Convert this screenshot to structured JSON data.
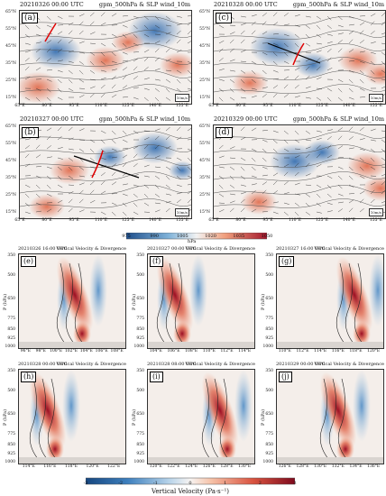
{
  "top_panels": [
    {
      "label": "(a)",
      "date": "20210326 00:00 UTC",
      "title": "gpm_500hPa & SLP wind_10m",
      "ref": "10m/s"
    },
    {
      "label": "(c)",
      "date": "20210328 00:00 UTC",
      "title": "gpm_500hPa & SLP wind_10m",
      "ref": "10m/s"
    },
    {
      "label": "(b)",
      "date": "20210327 00:00 UTC",
      "title": "gpm_500hPa & SLP wind_10m",
      "ref": "10m/s"
    },
    {
      "label": "(d)",
      "date": "20210329 00:00 UTC",
      "title": "gpm_500hPa & SLP wind_10m",
      "ref": "10m/s"
    }
  ],
  "top_lat_ticks": [
    "65°N",
    "55°N",
    "45°N",
    "35°N",
    "25°N",
    "15°N"
  ],
  "top_lon_ticks": [
    "65°E",
    "80°E",
    "95°E",
    "110°E",
    "125°E",
    "140°E",
    "155°E"
  ],
  "slp_colorbar": {
    "ticks": [
      "975",
      "990",
      "1005",
      "1020",
      "1035",
      "1050"
    ],
    "unit": "hPa"
  },
  "vv_title": "Vertical Velocity & Divergence",
  "pressure_label": "P (hPa)",
  "pressure_ticks": [
    "350",
    "500",
    "650",
    "775",
    "850",
    "925",
    "1000"
  ],
  "bottom_panels": [
    {
      "label": "(e)",
      "date": "20210326 16:00 UTC",
      "lon_ticks": [
        "96°E",
        "98°E",
        "100°E",
        "102°E",
        "104°E",
        "106°E",
        "108°E"
      ]
    },
    {
      "label": "(f)",
      "date": "20210327 00:00 UTC",
      "lon_ticks": [
        "104°E",
        "106°E",
        "108°E",
        "110°E",
        "112°E",
        "114°E"
      ]
    },
    {
      "label": "(g)",
      "date": "20210327 16:00 UTC",
      "lon_ticks": [
        "110°E",
        "112°E",
        "114°E",
        "116°E",
        "118°E",
        "120°E"
      ]
    },
    {
      "label": "(h)",
      "date": "20210328 00:00 UTC",
      "lon_ticks": [
        "114°E",
        "116°E",
        "118°E",
        "120°E",
        "122°E"
      ]
    },
    {
      "label": "(i)",
      "date": "20210328 08:00 UTC",
      "lon_ticks": [
        "120°E",
        "122°E",
        "124°E",
        "126°E",
        "128°E",
        "130°E"
      ]
    },
    {
      "label": "(j)",
      "date": "20210329 00:00 UTC",
      "lon_ticks": [
        "126°E",
        "128°E",
        "130°E",
        "132°E",
        "134°E",
        "136°E"
      ]
    }
  ],
  "vv_colorbar": {
    "ticks": [
      "-3",
      "-2",
      "-1",
      "0",
      "1",
      "2",
      "3"
    ],
    "title": "Vertical Velocity (Pa·s⁻¹)"
  },
  "colors": {
    "blue": "#3a76b4",
    "red": "#c8372c",
    "neutral": "#f4eeea"
  }
}
